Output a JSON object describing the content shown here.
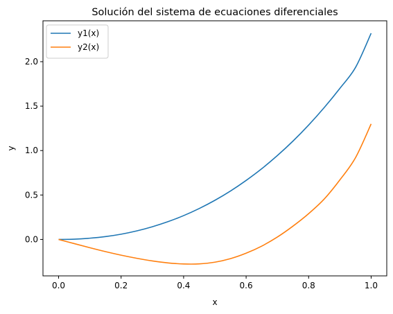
{
  "chart_data": {
    "type": "line",
    "title": "Solución del sistema de ecuaciones diferenciales",
    "xlabel": "x",
    "ylabel": "y",
    "xlim": [
      -0.05,
      1.05
    ],
    "ylim": [
      -0.41,
      2.46
    ],
    "xticks": [
      "0.0",
      "0.2",
      "0.4",
      "0.6",
      "0.8",
      "1.0"
    ],
    "yticks": [
      "0.0",
      "0.5",
      "1.0",
      "1.5",
      "2.0"
    ],
    "grid": false,
    "legend_position": "top-left",
    "series": [
      {
        "name": "y1(x)",
        "color": "#1f77b4",
        "x": [
          0.0,
          0.05,
          0.1,
          0.15,
          0.2,
          0.25,
          0.3,
          0.35,
          0.4,
          0.45,
          0.5,
          0.55,
          0.6,
          0.65,
          0.7,
          0.75,
          0.8,
          0.85,
          0.9,
          0.95,
          1.0
        ],
        "y": [
          0.0,
          0.003,
          0.014,
          0.032,
          0.059,
          0.096,
          0.143,
          0.2,
          0.268,
          0.348,
          0.44,
          0.545,
          0.664,
          0.796,
          0.944,
          1.107,
          1.287,
          1.484,
          1.7,
          1.935,
          2.32
        ]
      },
      {
        "name": "y2(x)",
        "color": "#ff7f0e",
        "x": [
          0.0,
          0.05,
          0.1,
          0.15,
          0.2,
          0.25,
          0.3,
          0.35,
          0.4,
          0.45,
          0.5,
          0.55,
          0.6,
          0.65,
          0.7,
          0.75,
          0.8,
          0.85,
          0.9,
          0.95,
          1.0
        ],
        "y": [
          0.0,
          -0.047,
          -0.093,
          -0.137,
          -0.177,
          -0.212,
          -0.242,
          -0.264,
          -0.276,
          -0.275,
          -0.256,
          -0.216,
          -0.155,
          -0.075,
          0.027,
          0.15,
          0.29,
          0.455,
          0.67,
          0.92,
          1.3
        ]
      }
    ]
  }
}
